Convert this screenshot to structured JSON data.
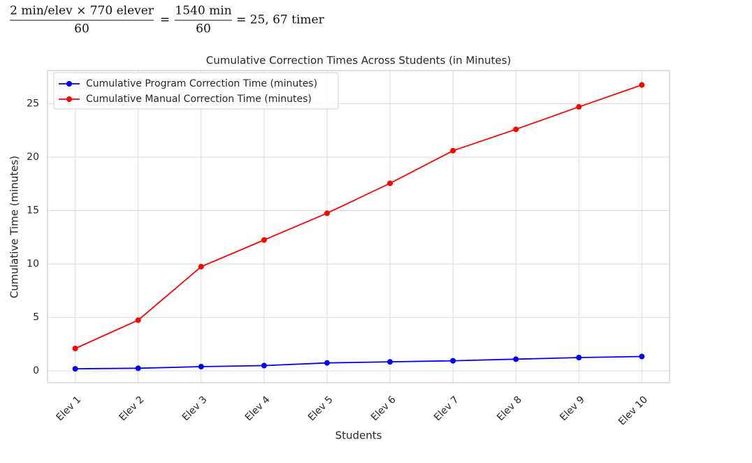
{
  "formula": {
    "terms": [
      {
        "numerator": "2 min/elev × 770 elever",
        "denominator": "60"
      },
      {
        "numerator": "1540 min",
        "denominator": "60"
      }
    ],
    "equals": "=",
    "result": "= 25, 67 timer"
  },
  "chart_data": {
    "type": "line",
    "title": "Cumulative Correction Times Across Students (in Minutes)",
    "x_label": "Students",
    "y_label": "Cumulative Time (minutes)",
    "categories": [
      "Elev 1",
      "Elev 2",
      "Elev 3",
      "Elev 4",
      "Elev 5",
      "Elev 6",
      "Elev 7",
      "Elev 8",
      "Elev 9",
      "Elev 10"
    ],
    "series": [
      {
        "name": "Cumulative Program Correction Time (minutes)",
        "color": "#0000ff",
        "values": [
          0.2,
          0.25,
          0.4,
          0.5,
          0.75,
          0.85,
          0.95,
          1.1,
          1.25,
          1.35
        ]
      },
      {
        "name": "Cumulative Manual Correction Time (minutes)",
        "color": "#ff0000",
        "values": [
          2.1,
          4.75,
          9.75,
          12.25,
          14.75,
          17.55,
          20.6,
          22.6,
          24.7,
          26.75
        ]
      }
    ],
    "ylim": [
      -1.1,
      28.1
    ],
    "yticks": [
      0,
      5,
      10,
      15,
      20,
      25
    ],
    "grid": true,
    "legend": "upper-left"
  }
}
